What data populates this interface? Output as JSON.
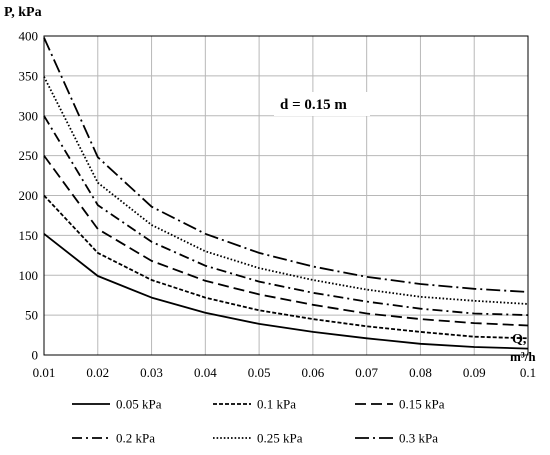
{
  "chart_data": {
    "type": "line",
    "ylabel": "P, kPa",
    "xlabel": "Q, m³/h",
    "annotation": "d = 0.15 m",
    "xlim": [
      0.01,
      0.1
    ],
    "ylim": [
      0,
      400
    ],
    "x_ticks": [
      "0.01",
      "0.02",
      "0.03",
      "0.04",
      "0.05",
      "0.06",
      "0.07",
      "0.08",
      "0.09",
      "0.1"
    ],
    "y_ticks": [
      "0",
      "50",
      "100",
      "150",
      "200",
      "250",
      "300",
      "350",
      "400"
    ],
    "grid": true,
    "legend_position": "bottom",
    "x": [
      0.01,
      0.02,
      0.03,
      0.04,
      0.05,
      0.06,
      0.07,
      0.08,
      0.09,
      0.1
    ],
    "series": [
      {
        "name": "0.05 kPa",
        "values": [
          152,
          99,
          72,
          53,
          39,
          29,
          21,
          14,
          10,
          8
        ],
        "dash": "solid"
      },
      {
        "name": "0.1 kPa",
        "values": [
          200,
          128,
          94,
          72,
          56,
          45,
          36,
          29,
          23,
          21
        ],
        "dash": "short"
      },
      {
        "name": "0.15 kPa",
        "values": [
          250,
          158,
          118,
          93,
          76,
          63,
          52,
          45,
          40,
          37
        ],
        "dash": "long"
      },
      {
        "name": "0.2 kPa",
        "values": [
          300,
          188,
          142,
          112,
          92,
          78,
          67,
          58,
          52,
          50
        ],
        "dash": "dashdot"
      },
      {
        "name": "0.25 kPa",
        "values": [
          349,
          216,
          163,
          130,
          109,
          94,
          82,
          73,
          68,
          64
        ],
        "dash": "dotted"
      },
      {
        "name": "0.3 kPa",
        "values": [
          398,
          248,
          186,
          152,
          128,
          111,
          98,
          89,
          83,
          79
        ],
        "dash": "longdashdot"
      }
    ]
  }
}
